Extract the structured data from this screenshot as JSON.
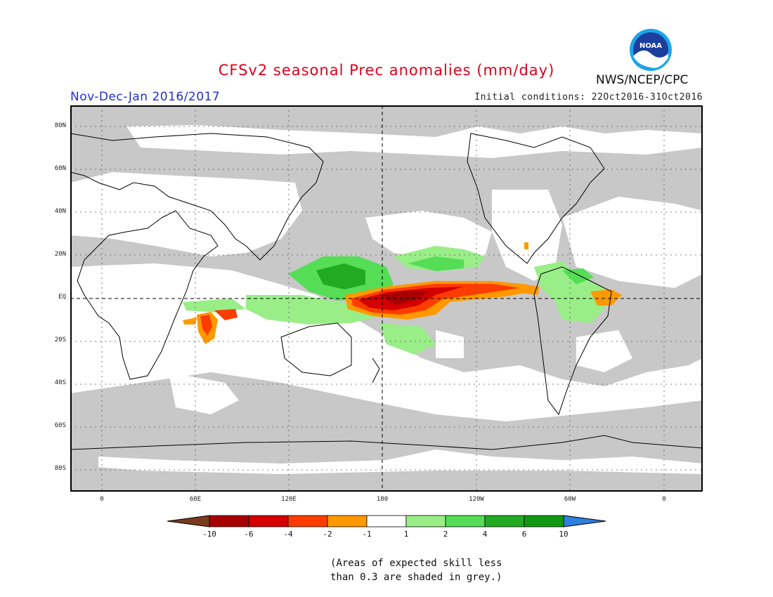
{
  "header": {
    "title": "CFSv2 seasonal Prec anomalies (mm/day)",
    "agency": "NWS/NCEP/CPC",
    "period": "Nov-Dec-Jan 2016/2017",
    "initial_conditions": "Initial conditions: 22Oct2016-31Oct2016",
    "logo_text": "NOAA"
  },
  "map": {
    "lat_labels": [
      "80N",
      "60N",
      "40N",
      "20N",
      "EQ",
      "20S",
      "40S",
      "60S",
      "80S"
    ],
    "lon_labels": [
      "0",
      "60E",
      "120E",
      "180",
      "120W",
      "60W",
      "0"
    ],
    "missing_color": "#c8c8c8",
    "regions": [
      {
        "name": "central-pacific-wet-core",
        "level": "-10"
      },
      {
        "name": "equatorial-pacific-dry",
        "level": "-6"
      },
      {
        "name": "east-pacific-dry",
        "level": "-4"
      },
      {
        "name": "brazil-dry",
        "level": "-2"
      },
      {
        "name": "indian-ocean-dry",
        "level": "-4"
      },
      {
        "name": "maritime-continent-wet",
        "level": "2"
      },
      {
        "name": "west-pacific-wet",
        "level": "4"
      },
      {
        "name": "northeast-pacific-wet",
        "level": "2"
      },
      {
        "name": "south-america-wet",
        "level": "2"
      }
    ]
  },
  "colorbar": {
    "labels": [
      "-10",
      "-6",
      "-4",
      "-2",
      "-1",
      "1",
      "2",
      "4",
      "6",
      "10"
    ],
    "colors": [
      "#7a3b1d",
      "#a80000",
      "#d40000",
      "#ff3c00",
      "#ff9900",
      "#ffffff",
      "#99ee88",
      "#55dd55",
      "#22aa22",
      "#119911",
      "#2d7fe0"
    ]
  },
  "note": {
    "line1": "(Areas of expected skill less",
    "line2": "than 0.3 are shaded in grey.)"
  }
}
